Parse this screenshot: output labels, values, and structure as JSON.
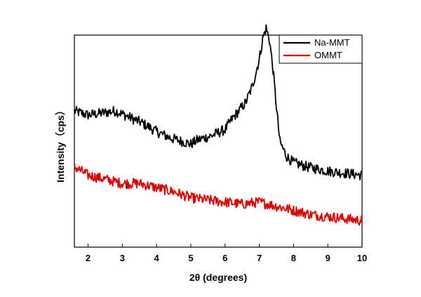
{
  "chart_data": {
    "type": "line",
    "title": "",
    "xlabel": "2θ (degrees)",
    "ylabel": "Intensity（cps）",
    "xlim": [
      1.6,
      10
    ],
    "xticks": [
      2,
      3,
      4,
      5,
      6,
      7,
      8,
      9,
      10
    ],
    "yticks_labeled": false,
    "grid": false,
    "legend_position": "top-right",
    "series": [
      {
        "name": "Na-MMT",
        "color": "#000000",
        "x": [
          1.6,
          2.0,
          2.4,
          2.8,
          3.2,
          3.6,
          4.0,
          4.4,
          4.8,
          5.0,
          5.2,
          5.6,
          6.0,
          6.2,
          6.4,
          6.6,
          6.8,
          7.0,
          7.1,
          7.2,
          7.3,
          7.4,
          7.5,
          7.6,
          7.8,
          8.0,
          8.4,
          9.0,
          9.5,
          10.0
        ],
        "y": [
          0.6,
          0.58,
          0.59,
          0.6,
          0.57,
          0.54,
          0.5,
          0.47,
          0.45,
          0.44,
          0.46,
          0.48,
          0.51,
          0.56,
          0.6,
          0.64,
          0.72,
          0.85,
          0.95,
          1.0,
          0.94,
          0.8,
          0.62,
          0.45,
          0.38,
          0.35,
          0.33,
          0.31,
          0.3,
          0.29
        ]
      },
      {
        "name": "OMMT",
        "color": "#e00000",
        "x": [
          1.6,
          2.0,
          2.5,
          3.0,
          3.5,
          4.0,
          4.5,
          5.0,
          5.5,
          6.0,
          6.5,
          7.0,
          7.5,
          8.0,
          8.5,
          9.0,
          9.5,
          10.0
        ],
        "y": [
          0.33,
          0.29,
          0.27,
          0.25,
          0.25,
          0.23,
          0.21,
          0.18,
          0.17,
          0.16,
          0.15,
          0.16,
          0.14,
          0.12,
          0.1,
          0.09,
          0.08,
          0.07
        ]
      }
    ]
  }
}
